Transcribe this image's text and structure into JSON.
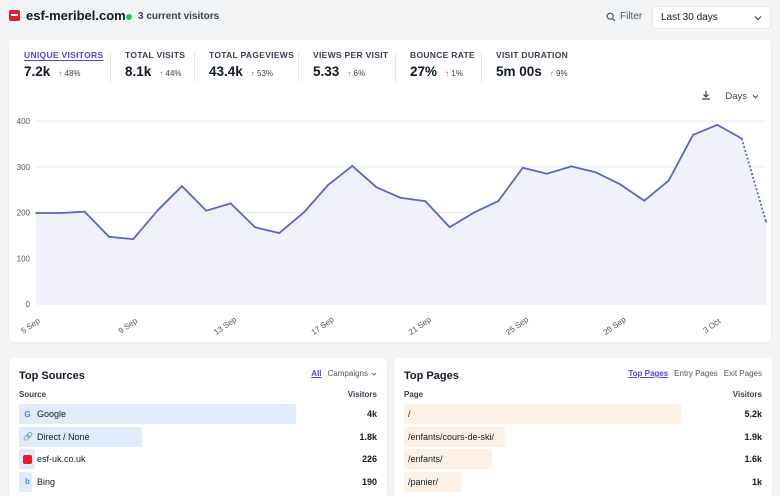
{
  "header": {
    "site_name": "esf-meribel.com",
    "visitors_now": "3 current visitors",
    "filter_label": "Filter",
    "period_label": "Last 30 days"
  },
  "metrics": [
    {
      "label": "UNIQUE VISITORS",
      "value": "7.2k",
      "change": "48%",
      "direction": "up",
      "active": true
    },
    {
      "label": "TOTAL VISITS",
      "value": "8.1k",
      "change": "44%",
      "direction": "up"
    },
    {
      "label": "TOTAL PAGEVIEWS",
      "value": "43.4k",
      "change": "53%",
      "direction": "up"
    },
    {
      "label": "VIEWS PER VISIT",
      "value": "5.33",
      "change": "6%",
      "direction": "up"
    },
    {
      "label": "BOUNCE RATE",
      "value": "27%",
      "change": "1%",
      "direction": "up-bad"
    },
    {
      "label": "VISIT DURATION",
      "value": "5m 00s",
      "change": "9%",
      "direction": "up"
    }
  ],
  "chart_tools": {
    "interval_label": "Days"
  },
  "chart_data": {
    "type": "area",
    "x": [
      "5 Sep",
      "6 Sep",
      "7 Sep",
      "8 Sep",
      "9 Sep",
      "10 Sep",
      "11 Sep",
      "12 Sep",
      "13 Sep",
      "14 Sep",
      "15 Sep",
      "16 Sep",
      "17 Sep",
      "18 Sep",
      "19 Sep",
      "20 Sep",
      "21 Sep",
      "22 Sep",
      "23 Sep",
      "24 Sep",
      "25 Sep",
      "26 Sep",
      "27 Sep",
      "28 Sep",
      "29 Sep",
      "30 Sep",
      "1 Oct",
      "2 Oct",
      "3 Oct",
      "4 Oct",
      "5 Oct"
    ],
    "xticks": [
      "5 Sep",
      "9 Sep",
      "13 Sep",
      "17 Sep",
      "21 Sep",
      "25 Sep",
      "29 Sep",
      "3 Oct"
    ],
    "series": [
      {
        "values": [
          199,
          199,
          202,
          147,
          142,
          205,
          258,
          204,
          220,
          168,
          155,
          200,
          260,
          302,
          255,
          232,
          225,
          168,
          200,
          225,
          298,
          285,
          301,
          288,
          262,
          226,
          270,
          370,
          392,
          362,
          180
        ]
      }
    ],
    "yticks": [
      0,
      100,
      200,
      300,
      400
    ],
    "ylim": [
      0,
      420
    ],
    "partial_last_segment": true,
    "grid": true,
    "colors": {
      "line": "#5b63d3",
      "fill": "#eef0fb"
    }
  },
  "top_sources": {
    "title": "Top Sources",
    "tabs": [
      "All",
      "Campaigns"
    ],
    "col_source": "Source",
    "col_visitors": "Visitors",
    "rows": [
      {
        "label": "Google",
        "value": "4k",
        "icon": "google-icon",
        "share": 0.88
      },
      {
        "label": "Direct / None",
        "value": "1.8k",
        "icon": "link-icon",
        "share": 0.39
      },
      {
        "label": "esf-uk.co.uk",
        "value": "226",
        "icon": "esf-icon",
        "share": 0.05
      },
      {
        "label": "Bing",
        "value": "190",
        "icon": "bing-icon",
        "share": 0.04
      }
    ]
  },
  "top_pages": {
    "title": "Top Pages",
    "tabs": [
      "Top Pages",
      "Entry Pages",
      "Exit Pages"
    ],
    "col_page": "Page",
    "col_visitors": "Visitors",
    "rows": [
      {
        "label": "/",
        "value": "5.2k",
        "share": 0.88
      },
      {
        "label": "/enfants/cours-de-ski/",
        "value": "1.9k",
        "share": 0.32
      },
      {
        "label": "/enfants/",
        "value": "1.6k",
        "share": 0.28
      },
      {
        "label": "/panier/",
        "value": "1k",
        "share": 0.18
      }
    ]
  }
}
